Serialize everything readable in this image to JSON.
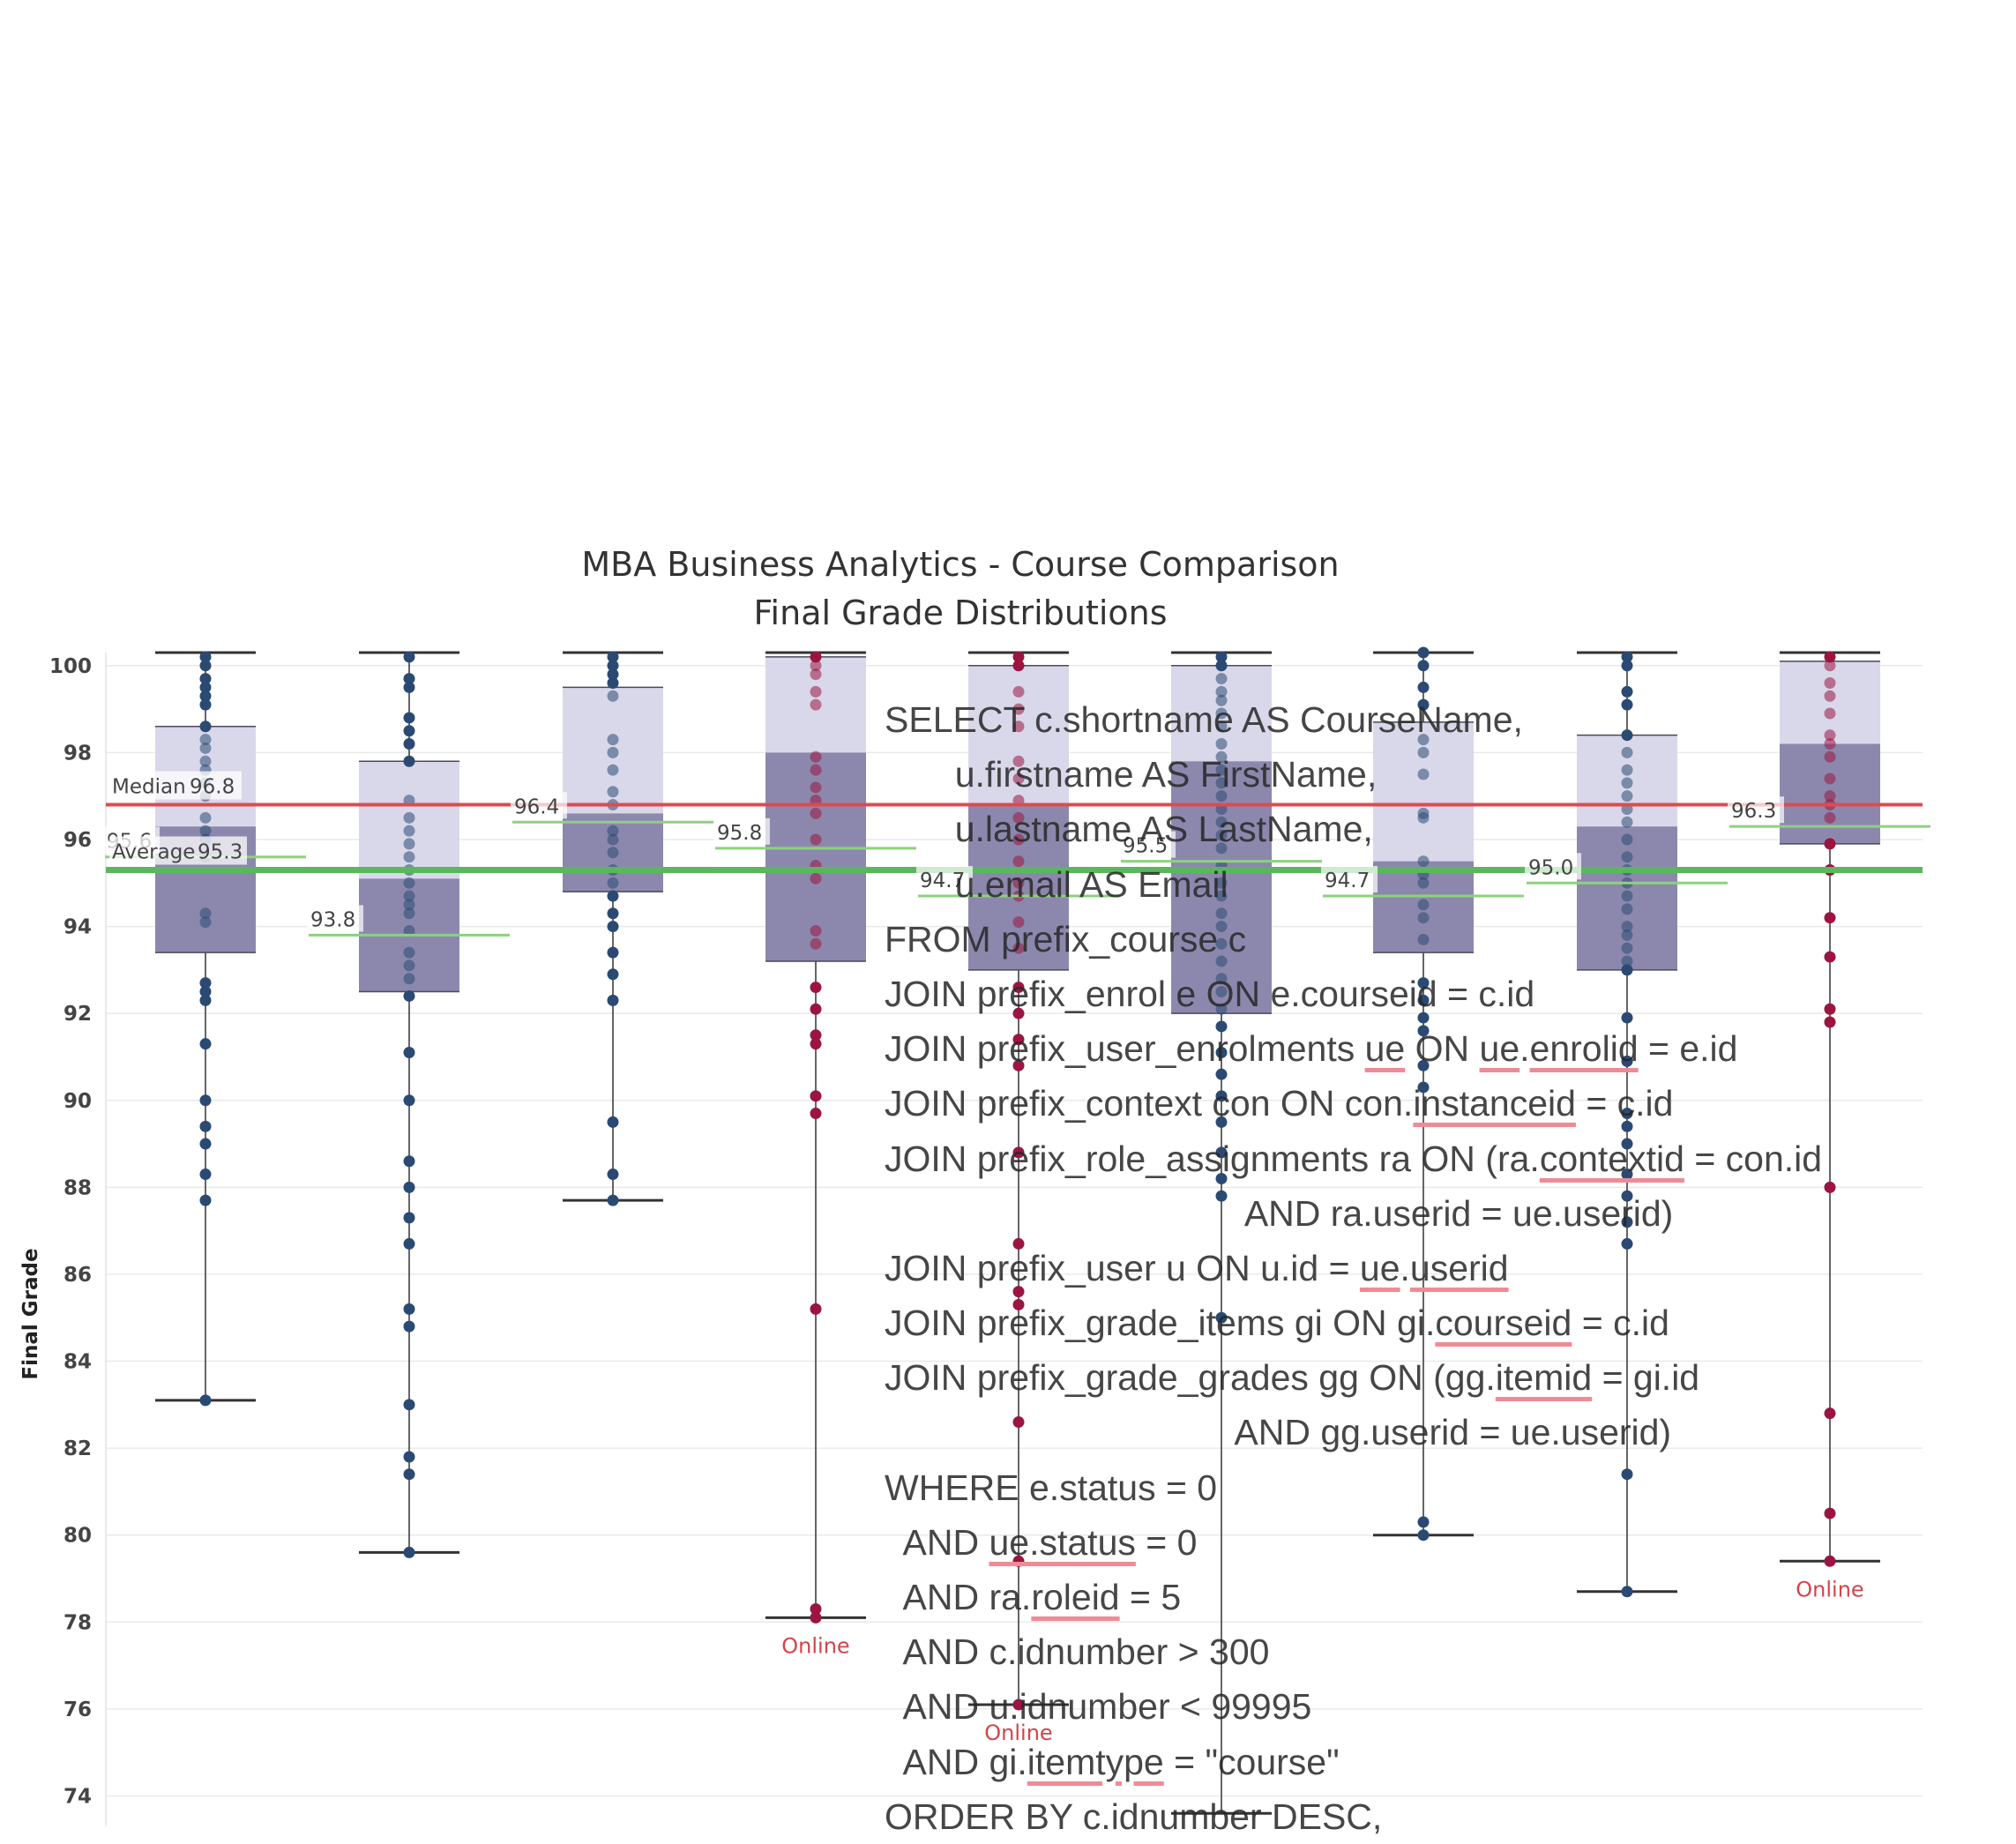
{
  "colors": {
    "box_upper": "#d9d8ea",
    "box_lower": "#8c88ad",
    "dot_blue": "#2b4a73",
    "dot_crimson": "#9b1540",
    "median_line": "#df4a4e",
    "average_line": "#5bb75e",
    "course_avg_line": "#8dd17f",
    "online_label": "#d2454a",
    "grid": "#e9e9e9"
  },
  "chart_data": {
    "type": "box",
    "title": "MBA Business Analytics - Course Comparison",
    "subtitle": "Final Grade Distributions",
    "ylabel": "Final Grade",
    "ylim": [
      73.3,
      100.3
    ],
    "yticks": [
      74,
      76,
      78,
      80,
      82,
      84,
      86,
      88,
      90,
      92,
      94,
      96,
      98,
      100
    ],
    "grid": true,
    "reference_lines": [
      {
        "name": "Median",
        "label": "Median",
        "value": 96.8,
        "value_label": "96.8"
      },
      {
        "name": "Average",
        "label": "Average",
        "value": 95.3,
        "value_label": "95.3"
      }
    ],
    "courses": [
      {
        "q1": 93.4,
        "median": 96.3,
        "q3": 98.6,
        "min": 83.1,
        "max": 100.3,
        "avg": 95.6,
        "avg_label": "95.6",
        "online": false,
        "points": [
          100.2,
          100.0,
          99.7,
          99.5,
          99.3,
          99.1,
          98.6,
          98.3,
          98.1,
          97.8,
          97.6,
          97.3,
          97.0,
          96.5,
          96.2,
          96.0,
          95.6,
          94.3,
          94.1,
          92.7,
          92.5,
          92.3,
          91.3,
          90.0,
          89.4,
          89.0,
          88.3,
          87.7,
          83.1
        ]
      },
      {
        "q1": 92.5,
        "median": 95.1,
        "q3": 97.8,
        "min": 79.6,
        "max": 100.3,
        "avg": 93.8,
        "avg_label": "93.8",
        "online": false,
        "points": [
          100.2,
          99.7,
          99.5,
          98.8,
          98.5,
          98.2,
          97.8,
          96.9,
          96.5,
          96.2,
          95.9,
          95.6,
          95.3,
          95.0,
          94.7,
          94.5,
          94.3,
          93.9,
          93.4,
          93.1,
          92.8,
          92.4,
          91.1,
          90.0,
          88.6,
          88.0,
          87.3,
          86.7,
          85.2,
          84.8,
          83.0,
          81.8,
          81.4,
          79.6
        ]
      },
      {
        "q1": 94.8,
        "median": 96.6,
        "q3": 99.5,
        "min": 87.7,
        "max": 100.3,
        "avg": 96.4,
        "avg_label": "96.4",
        "online": false,
        "points": [
          100.2,
          100.0,
          99.8,
          99.6,
          99.3,
          98.3,
          98.0,
          97.6,
          97.1,
          96.8,
          96.2,
          96.0,
          95.7,
          95.3,
          95.0,
          94.7,
          94.3,
          94.0,
          93.4,
          92.9,
          92.3,
          89.5,
          88.3,
          87.7
        ]
      },
      {
        "q1": 93.2,
        "median": 98.0,
        "q3": 100.2,
        "min": 78.1,
        "max": 100.3,
        "avg": 95.8,
        "avg_label": "95.8",
        "online": true,
        "points": [
          100.2,
          100.0,
          99.8,
          99.4,
          99.1,
          97.9,
          97.6,
          97.2,
          96.9,
          96.6,
          96.0,
          95.4,
          95.1,
          93.9,
          93.6,
          92.6,
          92.1,
          91.5,
          91.3,
          90.1,
          89.7,
          85.2,
          78.3,
          78.1
        ]
      },
      {
        "q1": 93.0,
        "median": 96.8,
        "q3": 100.0,
        "min": 76.1,
        "max": 100.3,
        "avg": 94.7,
        "avg_label": "94.7",
        "online": true,
        "points": [
          100.2,
          100.0,
          99.4,
          99.0,
          98.6,
          97.8,
          97.4,
          96.9,
          96.5,
          96.0,
          95.5,
          95.0,
          94.7,
          94.1,
          93.5,
          92.6,
          92.0,
          91.4,
          90.8,
          88.8,
          86.7,
          85.6,
          85.3,
          82.6,
          79.4,
          76.1
        ]
      },
      {
        "q1": 92.0,
        "median": 97.8,
        "q3": 100.0,
        "min": 73.6,
        "max": 100.3,
        "avg": 95.5,
        "avg_label": "95.5",
        "online": false,
        "points": [
          100.2,
          100.0,
          99.7,
          99.4,
          99.2,
          98.9,
          98.6,
          98.2,
          97.9,
          97.6,
          97.3,
          97.0,
          96.7,
          96.4,
          96.1,
          95.8,
          95.4,
          95.0,
          94.7,
          94.3,
          94.0,
          93.6,
          93.2,
          92.8,
          92.5,
          92.1,
          91.7,
          91.1,
          90.6,
          90.1,
          89.5,
          88.8,
          88.2,
          87.8,
          85.0
        ]
      },
      {
        "q1": 93.4,
        "median": 95.5,
        "q3": 98.7,
        "min": 80.0,
        "max": 100.3,
        "avg": 94.7,
        "avg_label": "94.7",
        "online": false,
        "points": [
          100.3,
          100.0,
          99.5,
          99.1,
          98.3,
          98.0,
          97.5,
          96.6,
          96.5,
          95.5,
          95.2,
          95.0,
          94.5,
          94.2,
          93.7,
          92.7,
          92.3,
          91.9,
          91.6,
          90.8,
          90.3,
          80.3,
          80.0
        ]
      },
      {
        "q1": 93.0,
        "median": 96.3,
        "q3": 98.4,
        "min": 78.7,
        "max": 100.3,
        "avg": 95.0,
        "avg_label": "95.0",
        "online": false,
        "points": [
          100.2,
          100.0,
          99.4,
          99.1,
          98.4,
          98.0,
          97.6,
          97.3,
          97.0,
          96.7,
          96.4,
          96.0,
          95.6,
          95.3,
          95.0,
          94.7,
          94.4,
          94.0,
          93.8,
          93.5,
          93.2,
          93.0,
          91.9,
          90.9,
          89.7,
          89.4,
          89.0,
          88.3,
          87.8,
          87.2,
          86.7,
          81.4,
          78.7
        ]
      },
      {
        "q1": 95.9,
        "median": 98.2,
        "q3": 100.1,
        "min": 79.4,
        "max": 100.3,
        "avg": 96.3,
        "avg_label": "96.3",
        "online": true,
        "points": [
          100.2,
          100.0,
          99.6,
          99.3,
          98.9,
          98.4,
          98.2,
          97.9,
          97.4,
          97.0,
          96.8,
          96.5,
          95.9,
          95.3,
          94.2,
          93.3,
          92.1,
          91.8,
          88.0,
          82.8,
          80.5,
          79.4
        ]
      }
    ]
  },
  "online_label": "Online",
  "sql_overlay": {
    "lines": [
      [
        {
          "t": "SELECT c.shortname AS CourseName,"
        }
      ],
      [
        {
          "t": "       u.firstname AS FirstName,"
        }
      ],
      [
        {
          "t": "       u.lastname AS LastName,"
        }
      ],
      [
        {
          "t": "       u.email AS Email"
        }
      ],
      [
        {
          "t": "FROM prefix_course c"
        }
      ],
      [
        {
          "t": "JOIN prefix_enrol e ON e.courseid = c.id"
        }
      ],
      [
        {
          "t": "JOIN prefix_user_enrolments "
        },
        {
          "t": "ue",
          "u": 1
        },
        {
          "t": " ON "
        },
        {
          "t": "ue",
          "u": 1
        },
        {
          "t": "."
        },
        {
          "t": "enrolid",
          "u": 1
        },
        {
          "t": " = e.id"
        }
      ],
      [
        {
          "t": "JOIN prefix_context con ON con."
        },
        {
          "t": "instanceid",
          "u": 1
        },
        {
          "t": " = c.id"
        }
      ],
      [
        {
          "t": "JOIN prefix_role_assignments ra ON (ra."
        },
        {
          "t": "contextid",
          "u": 1
        },
        {
          "t": " = con.id"
        }
      ],
      [
        {
          "t": "                                    AND ra.userid = ue.userid)"
        }
      ],
      [
        {
          "t": "JOIN prefix_user u ON u.id = "
        },
        {
          "t": "ue",
          "u": 1
        },
        {
          "t": "."
        },
        {
          "t": "userid",
          "u": 1
        }
      ],
      [
        {
          "t": "JOIN prefix_grade_items gi ON gi."
        },
        {
          "t": "courseid",
          "u": 1
        },
        {
          "t": " = c.id"
        }
      ],
      [
        {
          "t": "JOIN prefix_grade_grades gg ON (gg."
        },
        {
          "t": "itemid",
          "u": 1
        },
        {
          "t": " = gi.id"
        }
      ],
      [
        {
          "t": "                                   AND gg.userid = ue.userid)"
        }
      ],
      [
        {
          "t": "WHERE e.status = 0"
        }
      ],
      [
        {
          "t": "  AND "
        },
        {
          "t": "ue.status",
          "u": 1
        },
        {
          "t": " = 0"
        }
      ],
      [
        {
          "t": "  AND ra."
        },
        {
          "t": "roleid",
          "u": 1
        },
        {
          "t": " = 5"
        }
      ],
      [
        {
          "t": "  AND c.idnumber > 300"
        }
      ],
      [
        {
          "t": "  AND u.idnumber < 99995"
        }
      ],
      [
        {
          "t": "  AND gi."
        },
        {
          "t": "itemtype",
          "u": 1
        },
        {
          "t": " = \"course\""
        }
      ],
      [
        {
          "t": "ORDER BY c.idnumber DESC,"
        }
      ]
    ]
  }
}
